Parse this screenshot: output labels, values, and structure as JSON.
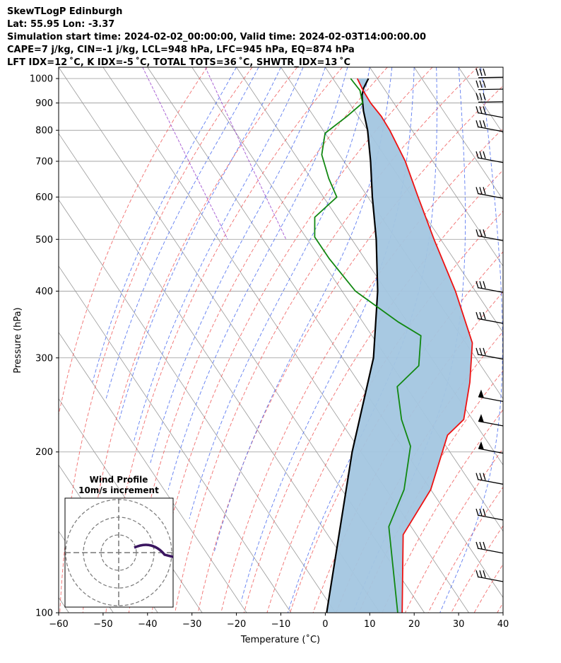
{
  "header": {
    "line1": "SkewTLogP Edinburgh",
    "line2": "Lat: 55.95   Lon: -3.37",
    "line3": "Simulation start time: 2024-02-02_00:00:00, Valid time: 2024-02-03T14:00:00.00",
    "line4": "CAPE=7 j/kg, CIN=-1 j/kg, LCL=948 hPa, LFC=945 hPa, EQ=874 hPa",
    "line5": "LFT IDX=12 ˚C, K IDX=-5 ˚C, TOTAL TOTS=36 ˚C, SHWTR_IDX=13 ˚C"
  },
  "chart_data": {
    "type": "line",
    "subtype": "skew-T log-P diagram",
    "xlabel": "Temperature (˚C)",
    "ylabel": "Pressure (hPa)",
    "xlim": [
      -60,
      40
    ],
    "ylim": [
      1050,
      100
    ],
    "y_scale": "log",
    "x_ticks": [
      -60,
      -50,
      -40,
      -30,
      -20,
      -10,
      0,
      10,
      20,
      30,
      40
    ],
    "y_ticks": [
      1000,
      900,
      800,
      700,
      600,
      500,
      400,
      300,
      200,
      100
    ],
    "grid": true,
    "colors": {
      "temperature": "#ee1111",
      "dewpoint": "#118811",
      "parcel": "#000000",
      "cape_fill": "#a3c6e0",
      "dry_adiabat": "#ee5555",
      "moist_adiabat": "#4466ee",
      "mixing_ratio": "#9944cc",
      "isotherm_grid": "#999999",
      "hodograph": "#3a1560"
    },
    "series": [
      {
        "key": "temperature",
        "points": [
          [
            5.5,
            1000
          ],
          [
            5,
            950
          ],
          [
            4.8,
            900
          ],
          [
            5.2,
            850
          ],
          [
            5.0,
            800
          ],
          [
            3.8,
            700
          ],
          [
            1.3,
            600
          ],
          [
            -1.5,
            500
          ],
          [
            -4.5,
            400
          ],
          [
            -8.5,
            320
          ],
          [
            -15,
            270
          ],
          [
            -22,
            230
          ],
          [
            -28,
            215
          ],
          [
            -40,
            170
          ],
          [
            -53,
            140
          ],
          [
            -65,
            100
          ]
        ]
      },
      {
        "key": "dewpoint",
        "points": [
          [
            4,
            1000
          ],
          [
            4.3,
            950
          ],
          [
            3,
            900
          ],
          [
            -2.5,
            850
          ],
          [
            -10,
            790
          ],
          [
            -14,
            720
          ],
          [
            -16,
            650
          ],
          [
            -17,
            600
          ],
          [
            -25,
            550
          ],
          [
            -28,
            505
          ],
          [
            -28,
            460
          ],
          [
            -27,
            400
          ],
          [
            -22,
            350
          ],
          [
            -19,
            330
          ],
          [
            -24,
            290
          ],
          [
            -32,
            265
          ],
          [
            -36,
            230
          ],
          [
            -38,
            205
          ],
          [
            -46,
            170
          ],
          [
            -55,
            145
          ],
          [
            -66,
            100
          ]
        ]
      },
      {
        "key": "parcel",
        "points": [
          [
            8,
            1000
          ],
          [
            5.5,
            960
          ],
          [
            4,
            930
          ],
          [
            2,
            870
          ],
          [
            0,
            800
          ],
          [
            -4,
            700
          ],
          [
            -9,
            600
          ],
          [
            -14.5,
            500
          ],
          [
            -22,
            400
          ],
          [
            -33,
            300
          ],
          [
            -52,
            200
          ],
          [
            -82,
            100
          ]
        ]
      }
    ],
    "wind_barbs": [
      {
        "p": 1000
      },
      {
        "p": 950
      },
      {
        "p": 900
      },
      {
        "p": 850
      },
      {
        "p": 800
      },
      {
        "p": 700
      },
      {
        "p": 600
      },
      {
        "p": 500
      },
      {
        "p": 400
      },
      {
        "p": 350
      },
      {
        "p": 300
      },
      {
        "p": 250
      },
      {
        "p": 225
      },
      {
        "p": 200
      },
      {
        "p": 175
      },
      {
        "p": 150
      },
      {
        "p": 130
      },
      {
        "p": 115
      }
    ],
    "inset": {
      "title_line1": "Wind Profile",
      "title_line2": "10m/s increment"
    }
  }
}
